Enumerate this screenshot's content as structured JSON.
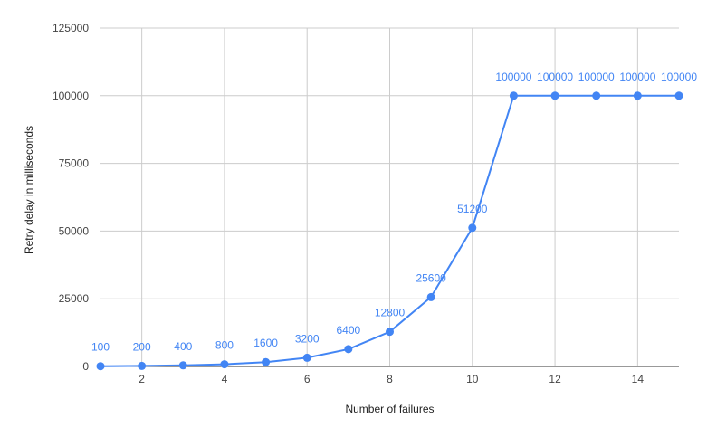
{
  "chart_data": {
    "type": "line",
    "title": "",
    "xlabel": "Number of failures",
    "ylabel": "Retry delay in milliseconds",
    "xlim": [
      1,
      15
    ],
    "ylim": [
      0,
      125000
    ],
    "x_ticks": [
      2,
      4,
      6,
      8,
      10,
      12,
      14
    ],
    "y_ticks": [
      0,
      25000,
      50000,
      75000,
      100000,
      125000
    ],
    "grid": true,
    "legend": "none",
    "series": [
      {
        "color": "#4285f4",
        "x": [
          1,
          2,
          3,
          4,
          5,
          6,
          7,
          8,
          9,
          10,
          11,
          12,
          13,
          14,
          15
        ],
        "values": [
          100,
          200,
          400,
          800,
          1600,
          3200,
          6400,
          12800,
          25600,
          51200,
          100000,
          100000,
          100000,
          100000,
          100000
        ],
        "data_labels": [
          "100",
          "200",
          "400",
          "800",
          "1600",
          "3200",
          "6400",
          "12800",
          "25600",
          "51200",
          "100000",
          "100000",
          "100000",
          "100000",
          "100000"
        ]
      }
    ]
  }
}
